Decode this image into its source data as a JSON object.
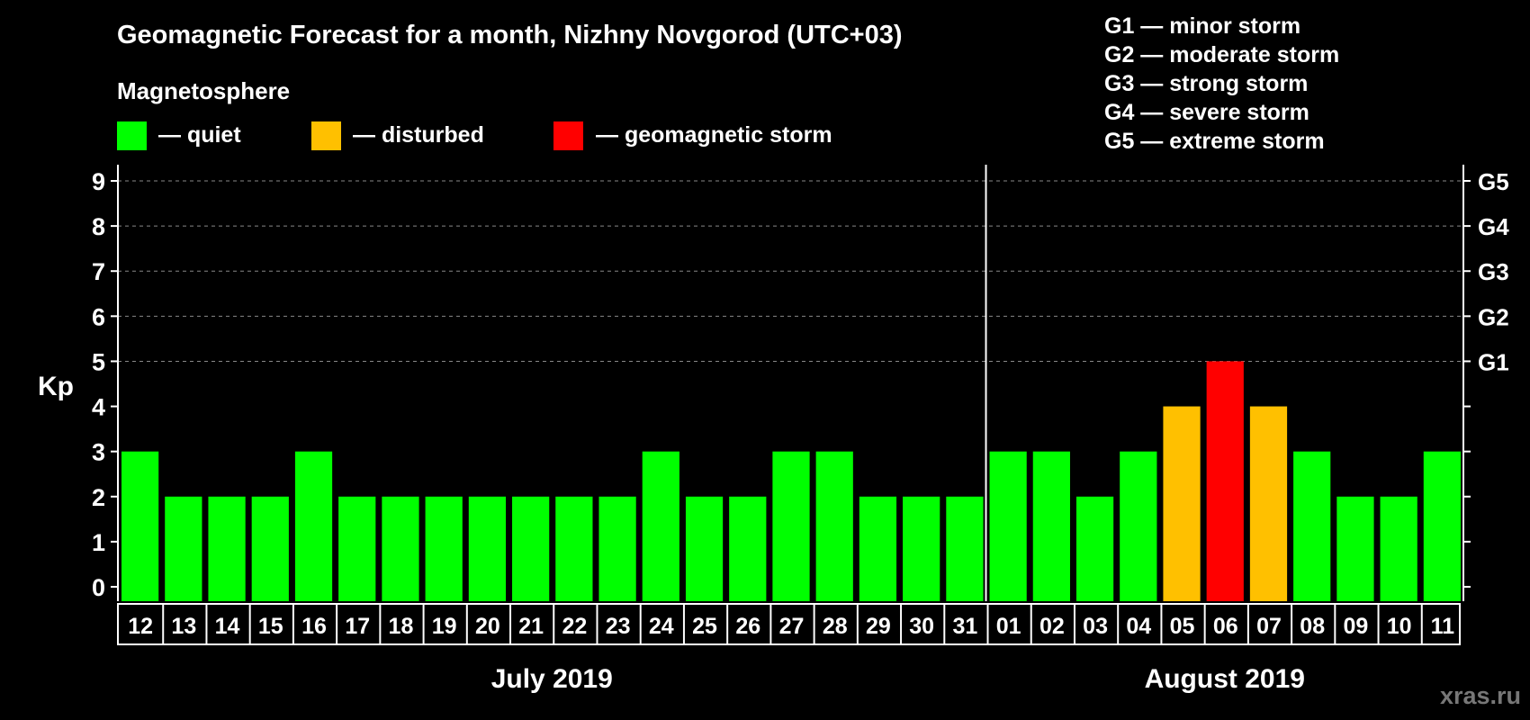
{
  "title": "Geomagnetic Forecast for a month, Nizhny Novgorod (UTC+03)",
  "subtitle": "Magnetosphere",
  "legend": [
    {
      "label": "— quiet",
      "color": "#00ff00"
    },
    {
      "label": "— disturbed",
      "color": "#ffc000"
    },
    {
      "label": "— geomagnetic storm",
      "color": "#ff0000"
    }
  ],
  "storm_legend": [
    "G1 — minor storm",
    "G2 — moderate storm",
    "G3 — strong storm",
    "G4 — severe storm",
    "G5 — extreme storm"
  ],
  "watermark": "xras.ru",
  "colors": {
    "background": "#000000",
    "quiet": "#00ff00",
    "disturbed": "#ffc000",
    "storm": "#ff0000",
    "text": "#ffffff",
    "grid": "#888888"
  },
  "chart_data": {
    "type": "bar",
    "ylabel": "Kp",
    "ylim": [
      0,
      9
    ],
    "yticks": [
      "0",
      "1",
      "2",
      "3",
      "4",
      "5",
      "6",
      "7",
      "8",
      "9"
    ],
    "right_ticks": [
      {
        "kp": 5,
        "label": "G1"
      },
      {
        "kp": 6,
        "label": "G2"
      },
      {
        "kp": 7,
        "label": "G3"
      },
      {
        "kp": 8,
        "label": "G4"
      },
      {
        "kp": 9,
        "label": "G5"
      }
    ],
    "grid": "dashed horizontal at Kp 5-9",
    "months": [
      {
        "label": "July 2019",
        "first_index": 0,
        "last_index": 19
      },
      {
        "label": "August 2019",
        "first_index": 20,
        "last_index": 30
      }
    ],
    "categories": [
      "12",
      "13",
      "14",
      "15",
      "16",
      "17",
      "18",
      "19",
      "20",
      "21",
      "22",
      "23",
      "24",
      "25",
      "26",
      "27",
      "28",
      "29",
      "30",
      "31",
      "01",
      "02",
      "03",
      "04",
      "05",
      "06",
      "07",
      "08",
      "09",
      "10",
      "11"
    ],
    "values": [
      3,
      2,
      2,
      2,
      3,
      2,
      2,
      2,
      2,
      2,
      2,
      2,
      3,
      2,
      2,
      3,
      3,
      2,
      2,
      2,
      3,
      3,
      2,
      3,
      4,
      5,
      4,
      3,
      2,
      2,
      3
    ],
    "status": [
      "quiet",
      "quiet",
      "quiet",
      "quiet",
      "quiet",
      "quiet",
      "quiet",
      "quiet",
      "quiet",
      "quiet",
      "quiet",
      "quiet",
      "quiet",
      "quiet",
      "quiet",
      "quiet",
      "quiet",
      "quiet",
      "quiet",
      "quiet",
      "quiet",
      "quiet",
      "quiet",
      "quiet",
      "disturbed",
      "storm",
      "disturbed",
      "quiet",
      "quiet",
      "quiet",
      "quiet"
    ]
  }
}
